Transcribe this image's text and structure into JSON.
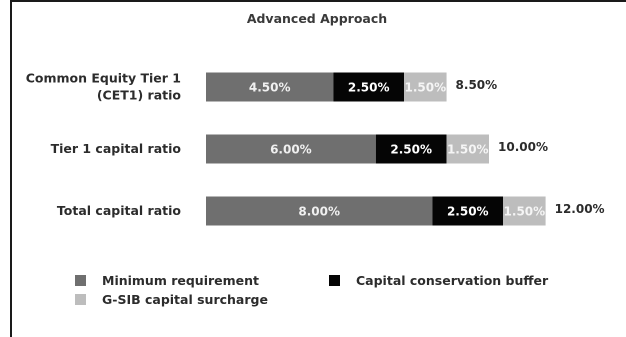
{
  "chart_data": {
    "type": "bar",
    "orientation": "horizontal",
    "stacked": true,
    "title": "Advanced Approach",
    "categories": [
      [
        "Common Equity Tier 1",
        "(CET1) ratio"
      ],
      [
        "Tier 1 capital ratio"
      ],
      [
        "Total capital ratio"
      ]
    ],
    "series": [
      {
        "name": "Minimum requirement",
        "color": "#6f6f6f",
        "text_color": "#f0f0f0",
        "values": [
          4.5,
          6.0,
          8.0
        ]
      },
      {
        "name": "Capital conservation buffer",
        "color": "#050505",
        "text_color": "#ffffff",
        "values": [
          2.5,
          2.5,
          2.5
        ]
      },
      {
        "name": "G-SIB capital surcharge",
        "color": "#bdbdbd",
        "text_color": "#f5f5f5",
        "values": [
          1.5,
          1.5,
          1.5
        ]
      }
    ],
    "segment_labels": [
      [
        "4.50%",
        "2.50%",
        "1.50%"
      ],
      [
        "6.00%",
        "2.50%",
        "1.50%"
      ],
      [
        "8.00%",
        "2.50%",
        "1.50%"
      ]
    ],
    "totals": [
      "8.50%",
      "10.00%",
      "12.00%"
    ],
    "legend": [
      {
        "name": "Minimum requirement",
        "color": "#6f6f6f"
      },
      {
        "name": "Capital conservation buffer",
        "color": "#050505"
      },
      {
        "name": "G-SIB capital surcharge",
        "color": "#bdbdbd"
      }
    ],
    "legend_position": "bottom",
    "grid": false,
    "xlim": [
      0,
      12
    ]
  }
}
